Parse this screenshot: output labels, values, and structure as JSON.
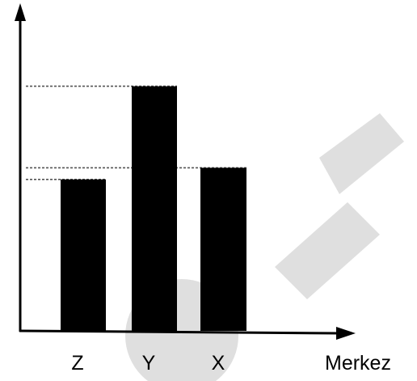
{
  "chart_data": {
    "type": "bar",
    "categories": [
      "Z",
      "Y",
      "X"
    ],
    "values": [
      3.9,
      6.3,
      4.2
    ],
    "xlabel": "Merkez",
    "ylabel": "",
    "ylim": [
      0,
      8
    ],
    "reference_lines": [
      3.9,
      6.3,
      4.2
    ],
    "grid": false,
    "legend": "none",
    "bar_color": "#000000"
  }
}
